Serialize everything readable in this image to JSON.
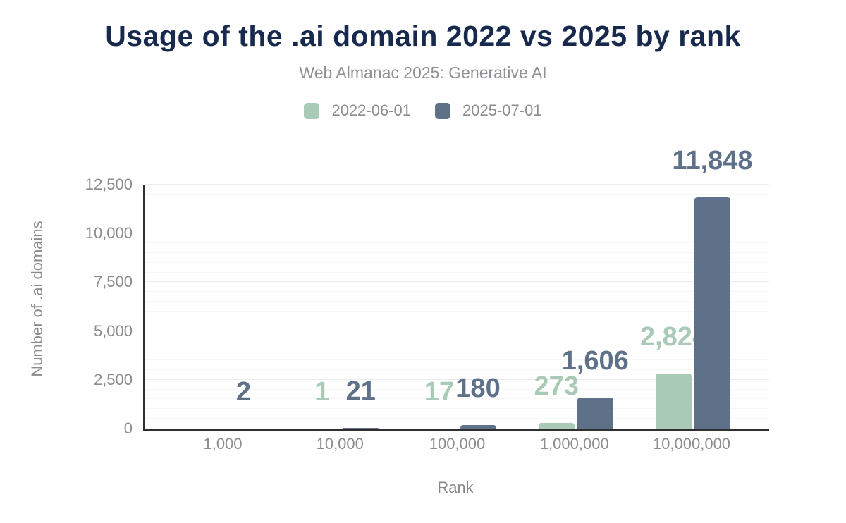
{
  "header": {
    "title": "Usage of the .ai domain 2022 vs 2025 by rank",
    "subtitle": "Web Almanac 2025: Generative AI"
  },
  "chart_data": {
    "type": "bar",
    "title": "Usage of the .ai domain 2022 vs 2025 by rank",
    "subtitle": "Web Almanac 2025: Generative AI",
    "xlabel": "Rank",
    "ylabel": "Number of .ai domains",
    "categories": [
      "1,000",
      "10,000",
      "100,000",
      "1,000,000",
      "10,000,000"
    ],
    "series": [
      {
        "name": "2022-06-01",
        "color": "#a8cab6",
        "values": [
          null,
          1,
          17,
          273,
          2824
        ],
        "labels": [
          "",
          "1",
          "17",
          "273",
          "2,824"
        ]
      },
      {
        "name": "2025-07-01",
        "color": "#5e7189",
        "values": [
          2,
          21,
          180,
          1606,
          11848
        ],
        "labels": [
          "2",
          "21",
          "180",
          "1,606",
          "11,848"
        ]
      }
    ],
    "ylim": [
      0,
      12500
    ],
    "yticks": [
      {
        "value": 0,
        "label": "0"
      },
      {
        "value": 2500,
        "label": "2,500"
      },
      {
        "value": 5000,
        "label": "5,000"
      },
      {
        "value": 7500,
        "label": "7,500"
      },
      {
        "value": 10000,
        "label": "10,000"
      },
      {
        "value": 12500,
        "label": "12,500"
      }
    ],
    "grid": {
      "minor_step": 500,
      "major_step": 2500,
      "vertical_lines": false
    },
    "legend_position": "top"
  },
  "colors": {
    "title_text": "#17294d",
    "muted_text": "#8a8c8e",
    "axis_line": "#2f2f2f",
    "grid_minor": "#f7f7f7",
    "grid_major": "#ececec",
    "background": "#ffffff"
  }
}
